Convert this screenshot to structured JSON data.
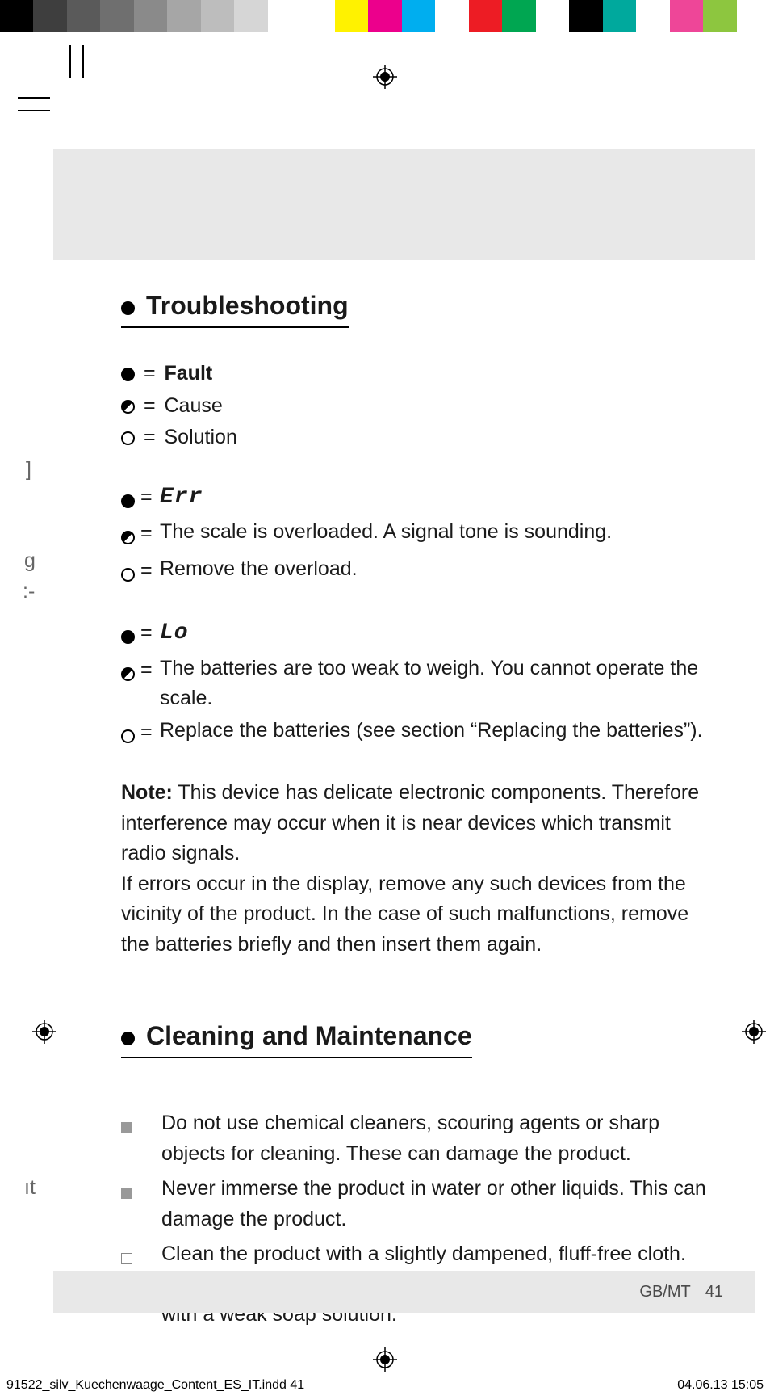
{
  "colorbar": [
    "#000000",
    "#3e3e3e",
    "#5a5a5a",
    "#6f6f6f",
    "#8a8a8a",
    "#a6a6a6",
    "#bdbdbd",
    "#d6d6d6",
    "#ffffff",
    "#ffffff",
    "#fff200",
    "#ec008c",
    "#00aeef",
    "#ffffff",
    "#ed1c24",
    "#00a651",
    "#ffffff",
    "#000000",
    "#00a99d",
    "#ffffff",
    "#ee4698",
    "#8dc63f",
    "#ffffff"
  ],
  "sections": {
    "troubleshooting": {
      "title": "Troubleshooting",
      "legend": {
        "fault": "Fault",
        "cause": "Cause",
        "solution": "Solution"
      },
      "groups": [
        {
          "fault_display": "Err",
          "cause": "The scale is overloaded. A signal tone is sounding.",
          "solution": "Remove the overload."
        },
        {
          "fault_display": "Lo",
          "cause": "The batteries are too weak to weigh. You cannot operate the scale.",
          "solution": "Replace the batteries (see section “Replacing the batteries”)."
        }
      ],
      "note_label": "Note:",
      "note_body_1": "This device has delicate electronic components. Therefore interference may occur when it is near devices which transmit radio signals.",
      "note_body_2": "If errors occur in the display, remove any such devices from the vicinity of the product. In the case of such malfunctions, remove the batteries briefly and then insert them again."
    },
    "cleaning": {
      "title": "Cleaning and Maintenance",
      "items": [
        {
          "marker": "filled",
          "text": "Do not use chemical cleaners, scouring agents or sharp objects for cleaning. These can damage the product."
        },
        {
          "marker": "filled",
          "text": "Never immerse the product in water or other liquids. This can damage the product."
        },
        {
          "marker": "open",
          "text": "Clean the product with a slightly dampened, fluff-free cloth. To remove more stubborn dirt, you can also dampen the cloth with a weak soap solution."
        }
      ]
    }
  },
  "footer": {
    "lang": "GB/MT",
    "page": "41"
  },
  "slug": {
    "file": "91522_silv_Kuechenwaage_Content_ES_IT.indd   41",
    "date": "04.06.13   15:05"
  },
  "edge_fragments": {
    "a": "]",
    "b": "g",
    "c": ":-",
    "d": "ıt"
  }
}
